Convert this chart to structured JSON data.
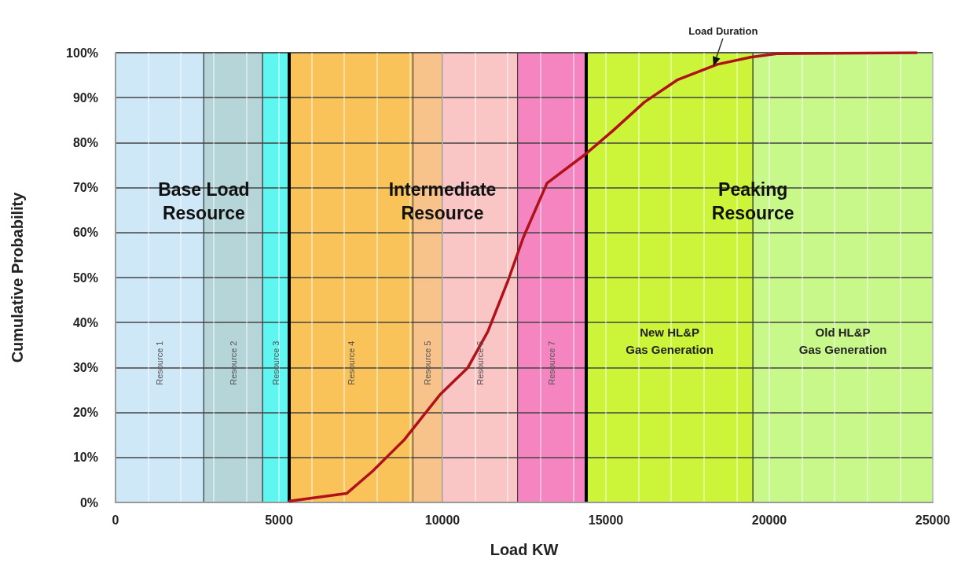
{
  "chart_data": {
    "type": "line",
    "xlabel": "Load KW",
    "ylabel": "Cumulative Probability",
    "xlim": [
      0,
      25000
    ],
    "ylim": [
      0,
      100
    ],
    "xticks": [
      0,
      {
        "value": 1000,
        "label": null
      },
      {
        "value": 2000,
        "label": null
      },
      {
        "value": 3000,
        "label": null
      },
      {
        "value": 4000,
        "label": null
      },
      5000,
      {
        "value": 6000,
        "label": null
      },
      {
        "value": 7000,
        "label": null
      },
      {
        "value": 8000,
        "label": null
      },
      {
        "value": 9000,
        "label": null
      },
      10000,
      {
        "value": 11000,
        "label": null
      },
      {
        "value": 12000,
        "label": null
      },
      {
        "value": 13000,
        "label": null
      },
      {
        "value": 14000,
        "label": null
      },
      15000,
      {
        "value": 16000,
        "label": null
      },
      {
        "value": 17000,
        "label": null
      },
      {
        "value": 18000,
        "label": null
      },
      {
        "value": 19000,
        "label": null
      },
      20000,
      {
        "value": 21000,
        "label": null
      },
      {
        "value": 22000,
        "label": null
      },
      {
        "value": 23000,
        "label": null
      },
      {
        "value": 24000,
        "label": null
      },
      25000
    ],
    "yticks": [
      {
        "value": 0,
        "label": "0%"
      },
      {
        "value": 10,
        "label": "10%"
      },
      {
        "value": 20,
        "label": "20%"
      },
      {
        "value": 30,
        "label": "30%"
      },
      {
        "value": 40,
        "label": "40%"
      },
      {
        "value": 50,
        "label": "50%"
      },
      {
        "value": 60,
        "label": "60%"
      },
      {
        "value": 70,
        "label": "70%"
      },
      {
        "value": 80,
        "label": "80%"
      },
      {
        "value": 90,
        "label": "90%"
      },
      {
        "value": 100,
        "label": "100%"
      }
    ],
    "grid": true,
    "marker": "none",
    "line_style": "solid",
    "series": [
      {
        "color": "#b0121a",
        "x": [
          5330,
          7070,
          7870,
          8840,
          9930,
          10780,
          11390,
          11990,
          12480,
          13200,
          14370,
          15190,
          16180,
          17200,
          18410,
          19430,
          20230,
          24500
        ],
        "values": [
          0.3,
          2,
          7,
          14,
          24,
          30,
          38,
          49,
          59,
          71,
          77.4,
          82.5,
          89,
          94,
          97.4,
          99,
          99.8,
          100
        ]
      }
    ],
    "bands": [
      {
        "axis": "x",
        "from": 0,
        "to": 2700,
        "label": "Resource 1",
        "color": "#cfe8f8"
      },
      {
        "axis": "x",
        "from": 2700,
        "to": 4500,
        "label": "Resource 2",
        "color": "#b5d5d8"
      },
      {
        "axis": "x",
        "from": 4500,
        "to": 5300,
        "label": "Resource 3",
        "color": "#5ff5f0"
      },
      {
        "axis": "x",
        "from": 5300,
        "to": 9100,
        "label": "Resource 4",
        "color": "#f9c35a"
      },
      {
        "axis": "x",
        "from": 9100,
        "to": 10000,
        "label": "Resource 5",
        "color": "#f7c38a"
      },
      {
        "axis": "x",
        "from": 10000,
        "to": 12300,
        "label": "Resource 6",
        "color": "#f9c5c5"
      },
      {
        "axis": "x",
        "from": 12300,
        "to": 14400,
        "label": "Resource 7",
        "color": "#f585c0"
      },
      {
        "axis": "x",
        "from": 14400,
        "to": 19500,
        "label": "New HL&P\nGas Generation",
        "color": "#ccf53a"
      },
      {
        "axis": "x",
        "from": 19500,
        "to": 25000,
        "label": "Old HL&P\nGas Generation",
        "color": "#c8f88a"
      }
    ],
    "ref_lines": [
      {
        "axis": "x",
        "value": 5300,
        "color": "#000000",
        "line_style": "solid"
      },
      {
        "axis": "x",
        "value": 14400,
        "color": "#000000",
        "line_style": "solid"
      }
    ],
    "annotations": [
      {
        "text": "Base Load\nResource",
        "x": 2700,
        "y": 67
      },
      {
        "text": "Intermediate\nResource",
        "x": 10000,
        "y": 67
      },
      {
        "text": "Peaking\nResource",
        "x": 19500,
        "y": 67
      },
      {
        "text": "Load Duration",
        "x": 18300,
        "y": 97
      }
    ]
  }
}
